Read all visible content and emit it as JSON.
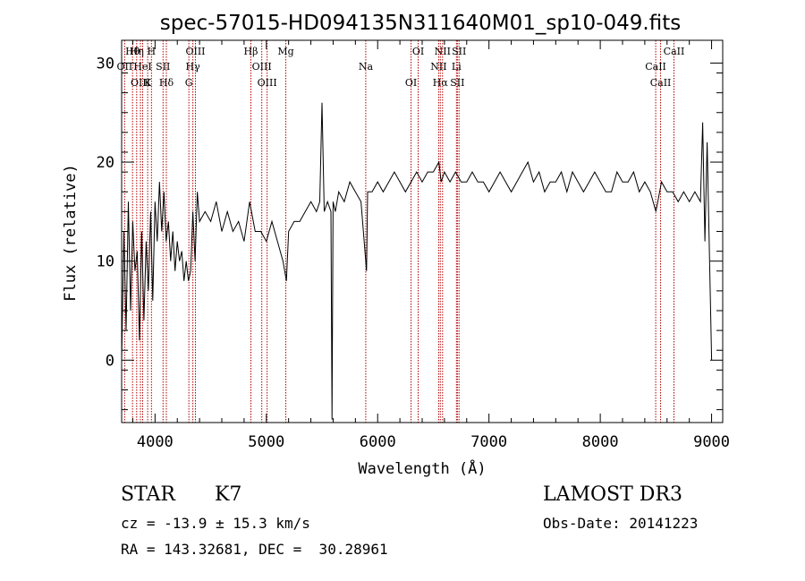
{
  "chart_data": {
    "type": "line",
    "title": "spec-57015-HD094135N311640M01_sp10-049.fits",
    "xlabel": "Wavelength (Å)",
    "ylabel": "Flux (relative)",
    "xlim": [
      3700,
      9100
    ],
    "ylim": [
      -6.3,
      32.3
    ],
    "xticks": [
      4000,
      5000,
      6000,
      7000,
      8000,
      9000
    ],
    "yticks": [
      0,
      10,
      20,
      30
    ],
    "grid": false,
    "series": [
      {
        "name": "flux",
        "x": [
          3700,
          3720,
          3740,
          3760,
          3780,
          3800,
          3820,
          3840,
          3860,
          3880,
          3900,
          3920,
          3940,
          3960,
          3980,
          4000,
          4020,
          4040,
          4060,
          4080,
          4100,
          4120,
          4140,
          4160,
          4180,
          4200,
          4220,
          4240,
          4260,
          4280,
          4300,
          4320,
          4340,
          4360,
          4380,
          4400,
          4450,
          4500,
          4550,
          4600,
          4650,
          4700,
          4750,
          4800,
          4850,
          4900,
          4950,
          5000,
          5050,
          5100,
          5150,
          5180,
          5200,
          5250,
          5300,
          5350,
          5400,
          5450,
          5480,
          5500,
          5520,
          5550,
          5580,
          5590,
          5600,
          5620,
          5650,
          5700,
          5750,
          5800,
          5850,
          5900,
          5910,
          5950,
          6000,
          6050,
          6100,
          6150,
          6200,
          6250,
          6300,
          6350,
          6400,
          6450,
          6500,
          6550,
          6570,
          6600,
          6650,
          6700,
          6750,
          6800,
          6850,
          6900,
          6950,
          7000,
          7050,
          7100,
          7150,
          7200,
          7250,
          7300,
          7350,
          7400,
          7450,
          7500,
          7550,
          7600,
          7650,
          7700,
          7750,
          7800,
          7850,
          7900,
          7950,
          8000,
          8050,
          8100,
          8150,
          8200,
          8250,
          8300,
          8350,
          8400,
          8450,
          8500,
          8550,
          8600,
          8650,
          8700,
          8750,
          8800,
          8850,
          8900,
          8920,
          8940,
          8960,
          8980,
          9000
        ],
        "values": [
          0,
          13,
          3,
          16,
          5,
          14,
          9,
          11,
          2,
          13,
          4,
          12,
          7,
          15,
          6,
          16,
          12,
          18,
          13,
          17,
          12,
          14,
          10,
          13,
          9,
          12,
          10,
          11,
          8,
          10,
          8,
          9,
          15,
          10,
          17,
          14,
          15,
          14,
          16,
          13,
          15,
          13,
          14,
          12,
          16,
          13,
          13,
          12,
          14,
          12,
          10,
          8,
          13,
          14,
          14,
          15,
          16,
          15,
          16,
          26,
          15,
          16,
          15,
          -6,
          16,
          15,
          17,
          16,
          18,
          17,
          16,
          9,
          17,
          17,
          18,
          17,
          18,
          19,
          18,
          17,
          18,
          19,
          18,
          19,
          19,
          20,
          18,
          19,
          18,
          19,
          18,
          18,
          19,
          18,
          18,
          17,
          18,
          19,
          18,
          17,
          18,
          19,
          20,
          18,
          19,
          17,
          18,
          18,
          19,
          17,
          19,
          18,
          17,
          18,
          19,
          18,
          17,
          17,
          19,
          18,
          18,
          19,
          17,
          18,
          17,
          15,
          18,
          17,
          17,
          16,
          17,
          16,
          17,
          16,
          24,
          12,
          22,
          11,
          0
        ]
      }
    ],
    "lines": [
      {
        "name": "Hθ",
        "x": 3798,
        "color": "#b00000"
      },
      {
        "name": "OII",
        "x": 3727,
        "color": "#b00000"
      },
      {
        "name": "OIII",
        "x": 3869,
        "color": "#b00000"
      },
      {
        "name": "Hη",
        "x": 3835,
        "color": "#b00000"
      },
      {
        "name": "HeI",
        "x": 3889,
        "color": "#b00000"
      },
      {
        "name": "K",
        "x": 3934,
        "color": "#b00000"
      },
      {
        "name": "H",
        "x": 3968,
        "color": "#b00000"
      },
      {
        "name": "SII",
        "x": 4072,
        "color": "#b00000"
      },
      {
        "name": "Hδ",
        "x": 4102,
        "color": "#b00000"
      },
      {
        "name": "OIII",
        "x": 4363,
        "color": "#b00000"
      },
      {
        "name": "Hγ",
        "x": 4340,
        "color": "#b00000"
      },
      {
        "name": "G",
        "x": 4304,
        "color": "#b00000"
      },
      {
        "name": "Hβ",
        "x": 4861,
        "color": "#b00000"
      },
      {
        "name": "OIII",
        "x": 4959,
        "color": "#b00000"
      },
      {
        "name": "OIII",
        "x": 5007,
        "color": "#b00000"
      },
      {
        "name": "Mg",
        "x": 5175,
        "color": "#b00000"
      },
      {
        "name": "Na",
        "x": 5893,
        "color": "#b00000"
      },
      {
        "name": "OI",
        "x": 6300,
        "color": "#b00000"
      },
      {
        "name": "OI",
        "x": 6364,
        "color": "#b00000"
      },
      {
        "name": "NII",
        "x": 6548,
        "color": "#b00000"
      },
      {
        "name": "Hα",
        "x": 6563,
        "color": "#b00000"
      },
      {
        "name": "NII",
        "x": 6583,
        "color": "#b00000"
      },
      {
        "name": "Li",
        "x": 6708,
        "color": "#b00000"
      },
      {
        "name": "SII",
        "x": 6716,
        "color": "#b00000"
      },
      {
        "name": "SII",
        "x": 6731,
        "color": "#b00000"
      },
      {
        "name": "CaII",
        "x": 8498,
        "color": "#b00000"
      },
      {
        "name": "CaII",
        "x": 8542,
        "color": "#b00000"
      },
      {
        "name": "CaII",
        "x": 8662,
        "color": "#b00000"
      }
    ]
  },
  "info": {
    "object_class": "STAR",
    "subclass": "K7",
    "survey": "LAMOST DR3",
    "redshift": "cz = -13.9 ± 15.3 km/s",
    "obs_date": "Obs-Date: 20141223",
    "coords": "RA = 143.32681, DEC =  30.28961"
  }
}
